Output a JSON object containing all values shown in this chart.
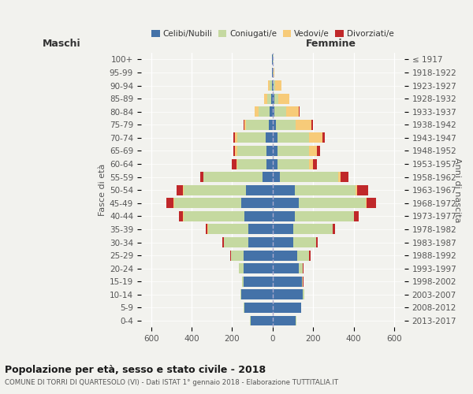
{
  "age_groups": [
    "0-4",
    "5-9",
    "10-14",
    "15-19",
    "20-24",
    "25-29",
    "30-34",
    "35-39",
    "40-44",
    "45-49",
    "50-54",
    "55-59",
    "60-64",
    "65-69",
    "70-74",
    "75-79",
    "80-84",
    "85-89",
    "90-94",
    "95-99",
    "100+"
  ],
  "birth_years": [
    "2013-2017",
    "2008-2012",
    "2003-2007",
    "1998-2002",
    "1993-1997",
    "1988-1992",
    "1983-1987",
    "1978-1982",
    "1973-1977",
    "1968-1972",
    "1963-1967",
    "1958-1962",
    "1953-1957",
    "1948-1952",
    "1943-1947",
    "1938-1942",
    "1933-1937",
    "1928-1932",
    "1923-1927",
    "1918-1922",
    "≤ 1917"
  ],
  "maschi": {
    "celibi": [
      110,
      140,
      155,
      145,
      145,
      145,
      120,
      120,
      140,
      155,
      130,
      50,
      30,
      30,
      35,
      20,
      15,
      8,
      5,
      2,
      2
    ],
    "coniugati": [
      2,
      2,
      5,
      5,
      20,
      60,
      120,
      200,
      300,
      330,
      310,
      290,
      145,
      145,
      140,
      110,
      55,
      20,
      10,
      2,
      1
    ],
    "vedovi": [
      0,
      0,
      0,
      0,
      1,
      1,
      1,
      2,
      3,
      3,
      3,
      3,
      5,
      10,
      10,
      10,
      20,
      15,
      8,
      1,
      0
    ],
    "divorziati": [
      0,
      0,
      0,
      1,
      2,
      5,
      8,
      10,
      20,
      35,
      30,
      15,
      20,
      10,
      10,
      5,
      0,
      0,
      0,
      0,
      0
    ]
  },
  "femmine": {
    "nubili": [
      115,
      140,
      150,
      145,
      130,
      120,
      100,
      100,
      110,
      130,
      110,
      35,
      25,
      25,
      25,
      15,
      10,
      8,
      5,
      2,
      2
    ],
    "coniugate": [
      2,
      2,
      5,
      5,
      20,
      60,
      115,
      195,
      290,
      330,
      300,
      290,
      155,
      155,
      155,
      100,
      55,
      18,
      8,
      2,
      1
    ],
    "vedove": [
      0,
      0,
      0,
      0,
      0,
      1,
      1,
      2,
      3,
      5,
      5,
      10,
      20,
      40,
      65,
      75,
      65,
      55,
      30,
      5,
      1
    ],
    "divorziate": [
      0,
      0,
      0,
      1,
      2,
      5,
      8,
      10,
      20,
      45,
      55,
      40,
      20,
      12,
      12,
      8,
      2,
      0,
      0,
      0,
      0
    ]
  },
  "colors": {
    "celibi": "#4472A8",
    "coniugati": "#C5D9A0",
    "vedovi": "#F7CB79",
    "divorziati": "#C0282A"
  },
  "xlim": 650,
  "title": "Popolazione per età, sesso e stato civile - 2018",
  "subtitle": "COMUNE DI TORRI DI QUARTESOLO (VI) - Dati ISTAT 1° gennaio 2018 - Elaborazione TUTTITALIA.IT",
  "ylabel": "Fasce di età",
  "ylabel2": "Anni di nascita",
  "xlabel_maschi": "Maschi",
  "xlabel_femmine": "Femmine",
  "legend_labels": [
    "Celibi/Nubili",
    "Coniugati/e",
    "Vedovi/e",
    "Divorziati/e"
  ],
  "bg_color": "#f2f2ee"
}
